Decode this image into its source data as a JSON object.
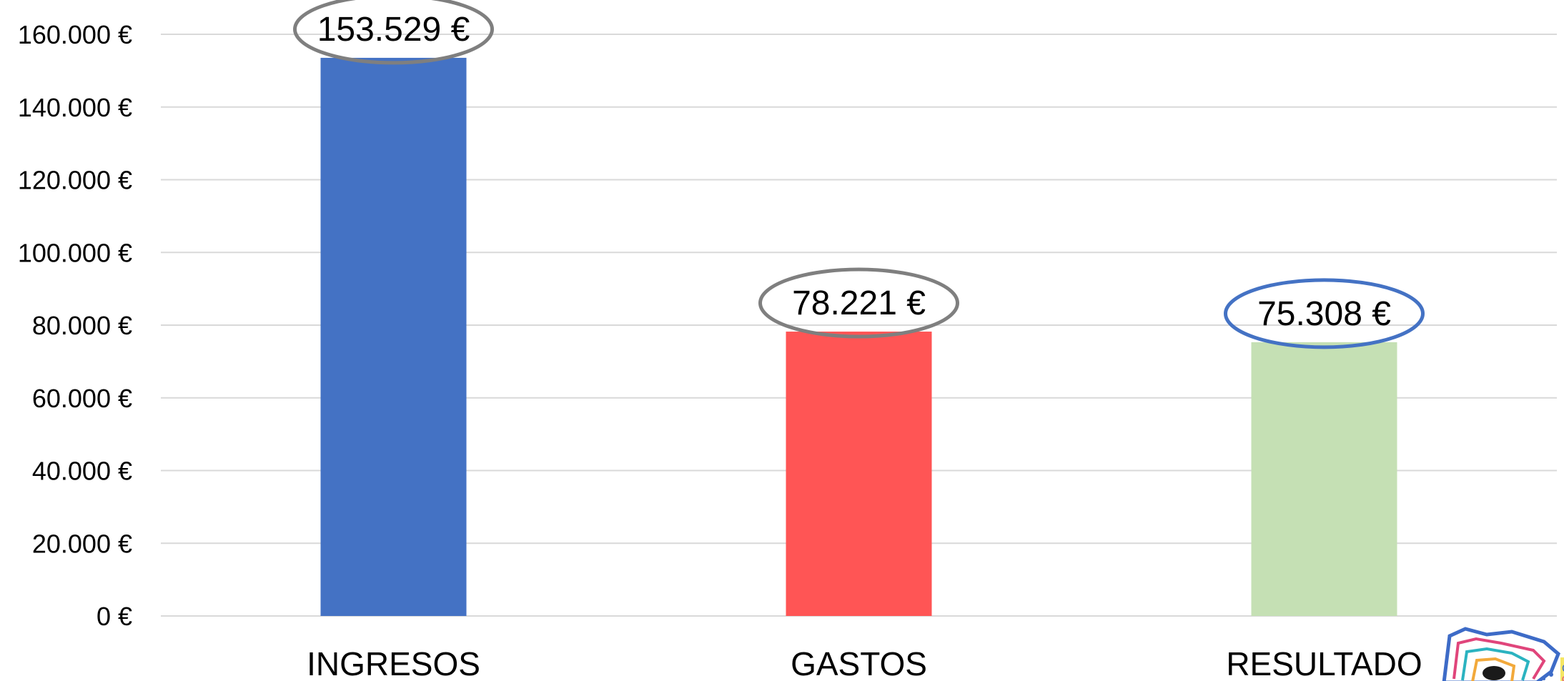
{
  "chart_data": {
    "type": "bar",
    "categories": [
      "INGRESOS",
      "GASTOS",
      "RESULTADO"
    ],
    "values": [
      153529,
      78221,
      75308
    ],
    "data_labels": [
      "153.529 €",
      "78.221 €",
      "75.308 €"
    ],
    "colors": [
      "#4472C4",
      "#FF5555",
      "#C5E0B4"
    ],
    "label_outline_colors": [
      "#7F7F7F",
      "#7F7F7F",
      "#4472C4"
    ],
    "ylim": [
      0,
      160000
    ],
    "y_ticks": [
      {
        "value": 0,
        "label": "0 €"
      },
      {
        "value": 20000,
        "label": "20.000 €"
      },
      {
        "value": 40000,
        "label": "40.000 €"
      },
      {
        "value": 60000,
        "label": "60.000 €"
      },
      {
        "value": 80000,
        "label": "80.000 €"
      },
      {
        "value": 100000,
        "label": "100.000 €"
      },
      {
        "value": 120000,
        "label": "120.000 €"
      },
      {
        "value": 140000,
        "label": "140.000 €"
      },
      {
        "value": 160000,
        "label": "160.000 €"
      }
    ],
    "grid": true,
    "legend": "none",
    "gridline_color": "#D9D9D9"
  },
  "decoration": {
    "logo_icon": "striped-logo-icon"
  }
}
